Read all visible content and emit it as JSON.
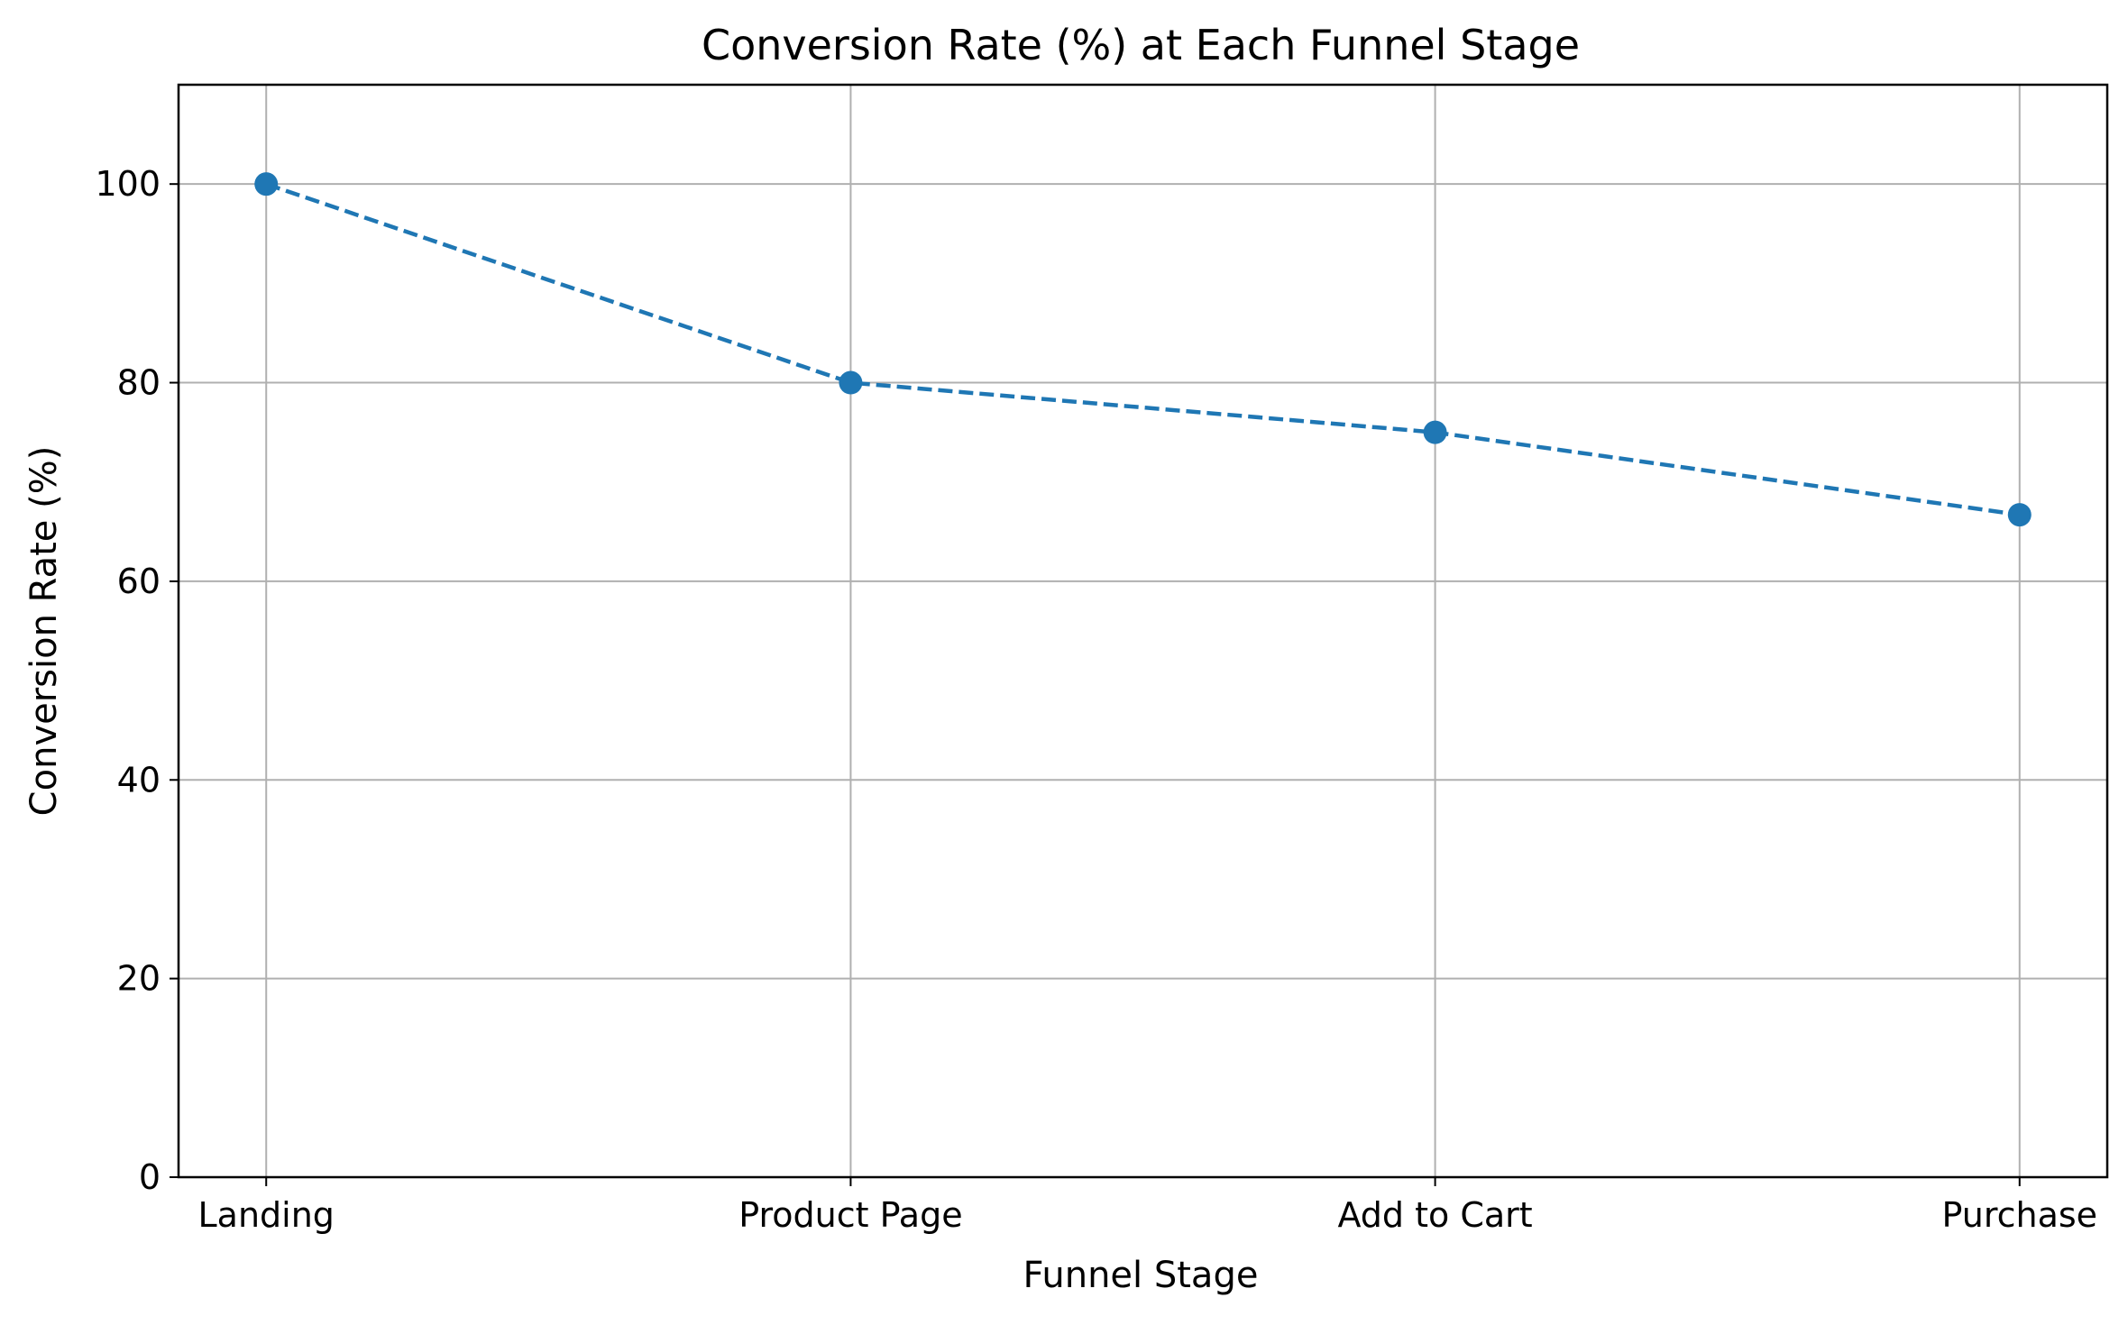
{
  "chart_data": {
    "type": "line",
    "title": "Conversion Rate (%) at Each Funnel Stage",
    "xlabel": "Funnel Stage",
    "ylabel": "Conversion Rate (%)",
    "categories": [
      "Landing",
      "Product Page",
      "Add to Cart",
      "Purchase"
    ],
    "series": [
      {
        "values": [
          100,
          80,
          75,
          66.7
        ],
        "color": "#1f77b4",
        "line_style": "dashed",
        "marker": "circle"
      }
    ],
    "ylim": [
      0,
      110
    ],
    "yticks": [
      0,
      20,
      40,
      60,
      80,
      100
    ],
    "ytick_labels": [
      "0",
      "20",
      "40",
      "60",
      "80",
      "100"
    ],
    "grid": true,
    "legend": false,
    "colors": {
      "grid": "#b0b0b0",
      "axis": "#000000",
      "background": "#ffffff"
    }
  }
}
